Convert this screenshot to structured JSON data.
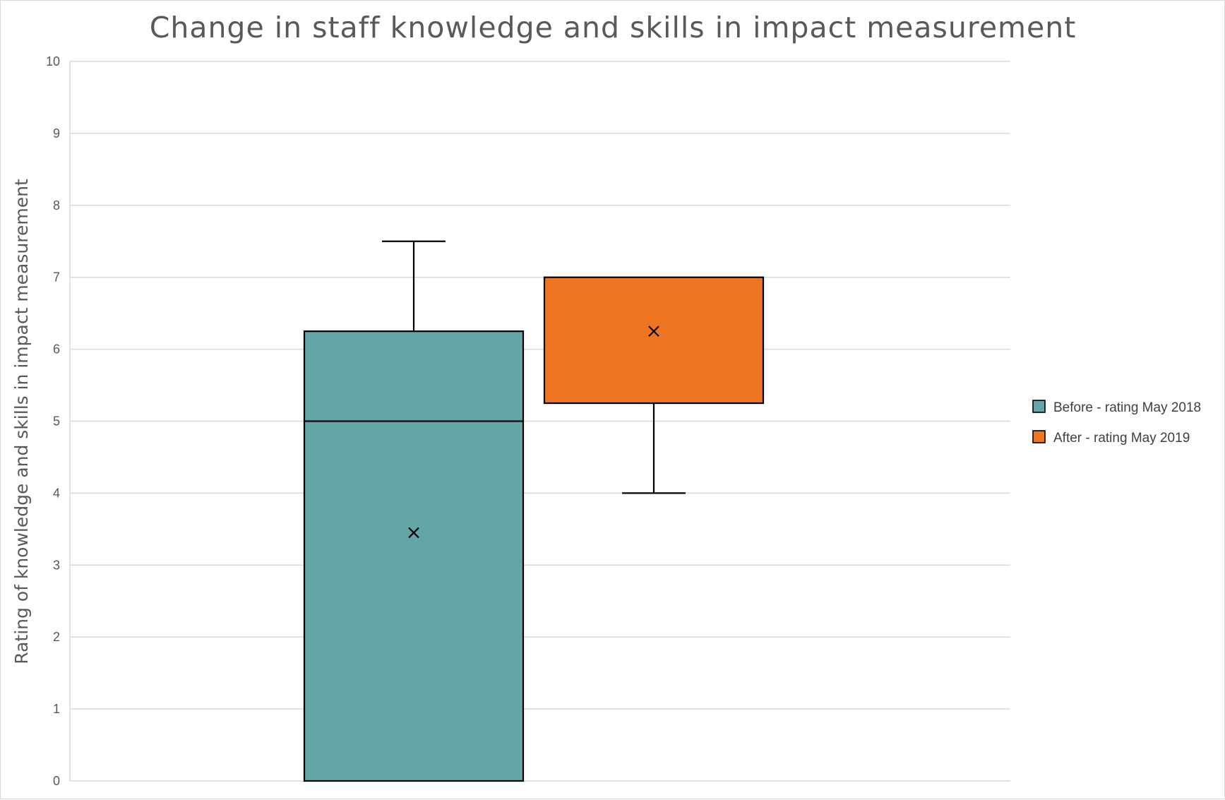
{
  "chart_data": {
    "type": "box",
    "title": "Change in staff knowledge and skills in impact measurement",
    "xlabel": "",
    "ylabel": "Rating of knowledge and skills in impact measurement",
    "ylim": [
      0,
      10
    ],
    "yticks": [
      0,
      1,
      2,
      3,
      4,
      5,
      6,
      7,
      8,
      9,
      10
    ],
    "grid": true,
    "legend_position": "right",
    "series": [
      {
        "name": "Before -  rating May 2018",
        "color": "#64a5a6",
        "min": 0,
        "q1": 0,
        "median": 5,
        "q3": 6.25,
        "max": 7.5,
        "mean": 3.45
      },
      {
        "name": "After -  rating May 2019",
        "color": "#ee7623",
        "min": 4,
        "q1": 5.25,
        "median": 7,
        "q3": 7,
        "max": 7,
        "mean": 6.25
      }
    ]
  }
}
